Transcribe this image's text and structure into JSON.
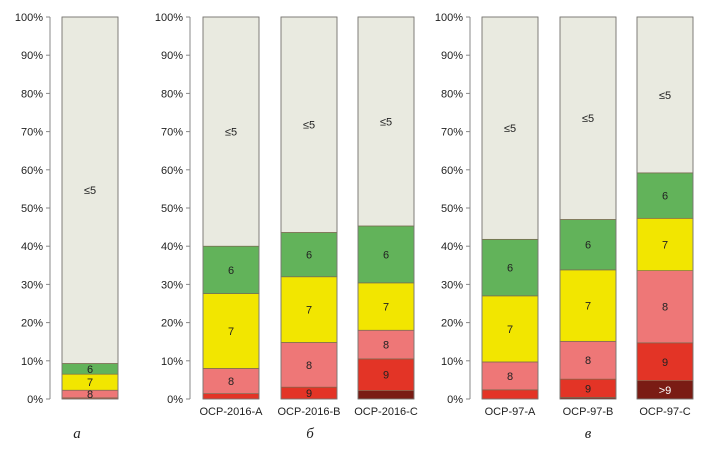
{
  "chart_data": [
    {
      "type": "bar",
      "stacked": true,
      "panel_label": "а",
      "categories": [
        ""
      ],
      "ylim": [
        0,
        100
      ],
      "yticks": [
        "0%",
        "10%",
        "20%",
        "30%",
        "40%",
        "50%",
        "60%",
        "70%",
        "80%",
        "90%",
        "100%"
      ],
      "series": [
        {
          "name": "9",
          "values": [
            0.3
          ]
        },
        {
          "name": "8",
          "values": [
            2.0
          ]
        },
        {
          "name": "7",
          "values": [
            4.2
          ]
        },
        {
          "name": "6",
          "values": [
            2.8
          ]
        },
        {
          "name": "≤5",
          "values": [
            90.7
          ]
        }
      ]
    },
    {
      "type": "bar",
      "stacked": true,
      "panel_label": "б",
      "categories": [
        "OCP-2016-A",
        "OCP-2016-B",
        "OCP-2016-C"
      ],
      "ylim": [
        0,
        100
      ],
      "yticks": [
        "0%",
        "10%",
        "20%",
        "30%",
        "40%",
        "50%",
        "60%",
        "70%",
        "80%",
        "90%",
        "100%"
      ],
      "series": [
        {
          "name": ">9",
          "values": [
            0,
            0,
            2.2
          ]
        },
        {
          "name": "9",
          "values": [
            1.4,
            3.1,
            8.3
          ]
        },
        {
          "name": "8",
          "values": [
            6.6,
            11.7,
            7.5
          ]
        },
        {
          "name": "7",
          "values": [
            19.6,
            17.2,
            12.4
          ]
        },
        {
          "name": "6",
          "values": [
            12.4,
            11.6,
            14.9
          ]
        },
        {
          "name": "≤5",
          "values": [
            60.0,
            56.4,
            54.7
          ]
        }
      ]
    },
    {
      "type": "bar",
      "stacked": true,
      "panel_label": "в",
      "categories": [
        "OCP-97-A",
        "OCP-97-B",
        "OCP-97-C"
      ],
      "ylim": [
        0,
        100
      ],
      "yticks": [
        "0%",
        "10%",
        "20%",
        "30%",
        "40%",
        "50%",
        "60%",
        "70%",
        "80%",
        "90%",
        "100%"
      ],
      "series": [
        {
          "name": ">9",
          "values": [
            0,
            0.4,
            4.8
          ]
        },
        {
          "name": "9",
          "values": [
            2.4,
            4.8,
            9.9
          ]
        },
        {
          "name": "8",
          "values": [
            7.3,
            9.9,
            18.9
          ]
        },
        {
          "name": "7",
          "values": [
            17.3,
            18.7,
            13.7
          ]
        },
        {
          "name": "6",
          "values": [
            14.8,
            13.2,
            11.9
          ]
        },
        {
          "name": "≤5",
          "values": [
            58.2,
            53.0,
            40.8
          ]
        }
      ]
    }
  ],
  "colors": {
    "≤5": "#e9eae0",
    "6": "#62b35a",
    "7": "#f2e600",
    "8": "#ee7777",
    "9": "#e33426",
    ">9": "#7a1c14"
  },
  "label_min_percent": 2.5
}
